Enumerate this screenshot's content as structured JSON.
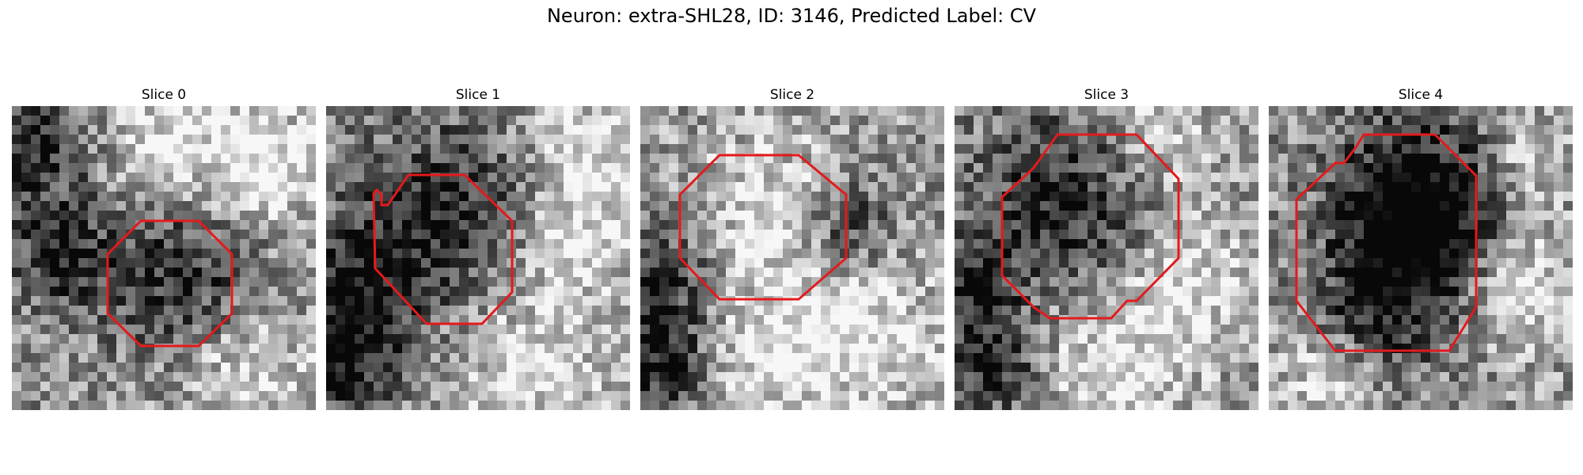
{
  "figure": {
    "title": "Neuron: extra-SHL28, ID: 3146, Predicted Label: CV"
  },
  "panels": [
    {
      "title": "Slice 0"
    },
    {
      "title": "Slice 1"
    },
    {
      "title": "Slice 2"
    },
    {
      "title": "Slice 3"
    },
    {
      "title": "Slice 4"
    }
  ],
  "colors": {
    "contour": "#e41a1c",
    "background": "#ffffff"
  },
  "image_style": "grayscale noisy microscopy patch with red octagonal segmentation contour"
}
